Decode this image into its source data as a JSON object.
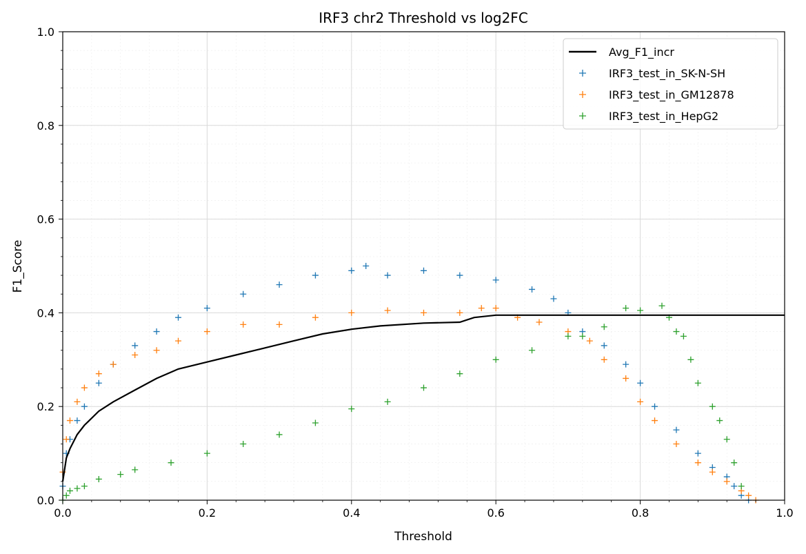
{
  "chart_data": {
    "type": "scatter",
    "title": "IRF3 chr2 Threshold vs log2FC",
    "xlabel": "Threshold",
    "ylabel": "F1_Score",
    "xlim": [
      0,
      1
    ],
    "ylim": [
      0,
      1
    ],
    "xticks": [
      "0.0",
      "0.2",
      "0.4",
      "0.6",
      "0.8",
      "1.0"
    ],
    "yticks": [
      "0.0",
      "0.2",
      "0.4",
      "0.6",
      "0.8",
      "1.0"
    ],
    "grid": true,
    "legend_position": "top-right",
    "series": [
      {
        "name": "Avg_F1_incr",
        "kind": "line",
        "color": "#000000",
        "x": [
          0.0,
          0.005,
          0.01,
          0.02,
          0.03,
          0.05,
          0.07,
          0.1,
          0.13,
          0.16,
          0.2,
          0.24,
          0.28,
          0.32,
          0.36,
          0.4,
          0.44,
          0.5,
          0.55,
          0.57,
          0.6,
          1.0
        ],
        "y": [
          0.04,
          0.09,
          0.11,
          0.14,
          0.16,
          0.19,
          0.21,
          0.235,
          0.26,
          0.28,
          0.295,
          0.31,
          0.325,
          0.34,
          0.355,
          0.365,
          0.372,
          0.378,
          0.38,
          0.39,
          0.395,
          0.395
        ]
      },
      {
        "name": "IRF3_test_in_SK-N-SH",
        "kind": "scatter",
        "color": "#1f77b4",
        "x": [
          0.0,
          0.005,
          0.01,
          0.02,
          0.03,
          0.05,
          0.07,
          0.1,
          0.13,
          0.16,
          0.2,
          0.25,
          0.3,
          0.35,
          0.4,
          0.42,
          0.45,
          0.5,
          0.55,
          0.6,
          0.65,
          0.68,
          0.7,
          0.72,
          0.75,
          0.78,
          0.8,
          0.82,
          0.85,
          0.88,
          0.9,
          0.92,
          0.93,
          0.94,
          0.95
        ],
        "y": [
          0.03,
          0.1,
          0.13,
          0.17,
          0.2,
          0.25,
          0.29,
          0.33,
          0.36,
          0.39,
          0.41,
          0.44,
          0.46,
          0.48,
          0.49,
          0.5,
          0.48,
          0.49,
          0.48,
          0.47,
          0.45,
          0.43,
          0.4,
          0.36,
          0.33,
          0.29,
          0.25,
          0.2,
          0.15,
          0.1,
          0.07,
          0.05,
          0.03,
          0.01,
          0.0
        ]
      },
      {
        "name": "IRF3_test_in_GM12878",
        "kind": "scatter",
        "color": "#ff7f0e",
        "x": [
          0.0,
          0.005,
          0.01,
          0.02,
          0.03,
          0.05,
          0.07,
          0.1,
          0.13,
          0.16,
          0.2,
          0.25,
          0.3,
          0.35,
          0.4,
          0.45,
          0.5,
          0.55,
          0.58,
          0.6,
          0.63,
          0.66,
          0.7,
          0.73,
          0.75,
          0.78,
          0.8,
          0.82,
          0.85,
          0.88,
          0.9,
          0.92,
          0.94,
          0.95,
          0.96
        ],
        "y": [
          0.06,
          0.13,
          0.17,
          0.21,
          0.24,
          0.27,
          0.29,
          0.31,
          0.32,
          0.34,
          0.36,
          0.375,
          0.375,
          0.39,
          0.4,
          0.405,
          0.4,
          0.4,
          0.41,
          0.41,
          0.39,
          0.38,
          0.36,
          0.34,
          0.3,
          0.26,
          0.21,
          0.17,
          0.12,
          0.08,
          0.06,
          0.04,
          0.02,
          0.01,
          0.0
        ]
      },
      {
        "name": "IRF3_test_in_HepG2",
        "kind": "scatter",
        "color": "#2ca02c",
        "x": [
          0.0,
          0.005,
          0.01,
          0.02,
          0.03,
          0.05,
          0.08,
          0.1,
          0.15,
          0.2,
          0.25,
          0.3,
          0.35,
          0.4,
          0.45,
          0.5,
          0.55,
          0.6,
          0.65,
          0.7,
          0.72,
          0.75,
          0.78,
          0.8,
          0.83,
          0.84,
          0.85,
          0.86,
          0.87,
          0.88,
          0.9,
          0.91,
          0.92,
          0.93,
          0.94
        ],
        "y": [
          0.0,
          0.01,
          0.02,
          0.025,
          0.03,
          0.045,
          0.055,
          0.065,
          0.08,
          0.1,
          0.12,
          0.14,
          0.165,
          0.195,
          0.21,
          0.24,
          0.27,
          0.3,
          0.32,
          0.35,
          0.35,
          0.37,
          0.41,
          0.405,
          0.415,
          0.39,
          0.36,
          0.35,
          0.3,
          0.25,
          0.2,
          0.17,
          0.13,
          0.08,
          0.03
        ]
      }
    ]
  }
}
